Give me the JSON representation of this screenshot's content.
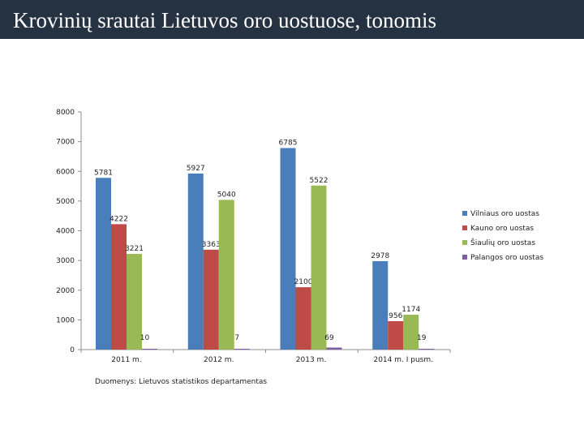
{
  "header": {
    "title": "Krovinių srautai Lietuvos oro uostuose, tonomis"
  },
  "source_note": "Duomenys: Lietuvos statistikos departamentas",
  "chart_data": {
    "type": "bar",
    "title": "Krovinių srautai Lietuvos oro uostuose, tonomis",
    "xlabel": "",
    "ylabel": "",
    "ylim": [
      0,
      8000
    ],
    "yticks": [
      0,
      1000,
      2000,
      3000,
      4000,
      5000,
      6000,
      7000,
      8000
    ],
    "grid": false,
    "legend_position": "right",
    "categories": [
      "2011 m.",
      "2012 m.",
      "2013 m.",
      "2014 m. I pusm."
    ],
    "series": [
      {
        "name": "Vilniaus oro uostas",
        "color": "#4a7ebb",
        "values": [
          5781,
          5927,
          6785,
          2978
        ]
      },
      {
        "name": "Kauno oro uostas",
        "color": "#be4b48",
        "values": [
          4222,
          3363,
          2100,
          956
        ]
      },
      {
        "name": "Šiaulių oro uostas",
        "color": "#98b954",
        "values": [
          3221,
          5040,
          5522,
          1174
        ]
      },
      {
        "name": "Palangos oro uostas",
        "color": "#7d60a0",
        "values": [
          10,
          7,
          69,
          19
        ]
      }
    ]
  }
}
